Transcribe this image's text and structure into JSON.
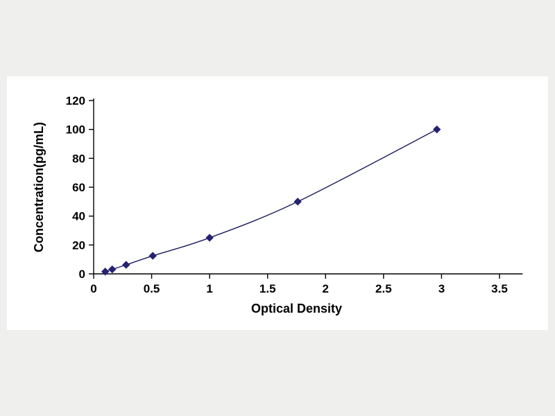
{
  "figure": {
    "background_color": "#efefee",
    "panel_color": "#ffffff"
  },
  "chart_data": {
    "type": "line",
    "title": "",
    "xlabel": "Optical Density",
    "ylabel": "Concentration(pg/mL)",
    "series": [
      {
        "name": "standard-curve",
        "x": [
          0.1,
          0.16,
          0.28,
          0.51,
          1.0,
          1.76,
          2.96
        ],
        "y": [
          1.56,
          3.12,
          6.25,
          12.5,
          25,
          50,
          100
        ]
      }
    ],
    "xlim": [
      0,
      3.7
    ],
    "ylim": [
      0,
      120
    ],
    "x_ticks": [
      0,
      0.5,
      1,
      1.5,
      2,
      2.5,
      3,
      3.5
    ],
    "y_ticks": [
      0,
      20,
      40,
      60,
      80,
      100,
      120
    ],
    "grid": false,
    "legend_position": "none",
    "line_color": "#1b1b5e",
    "marker": "diamond",
    "marker_color": "#252270",
    "axis_color": "#000000",
    "tick_label_color": "#000000"
  }
}
